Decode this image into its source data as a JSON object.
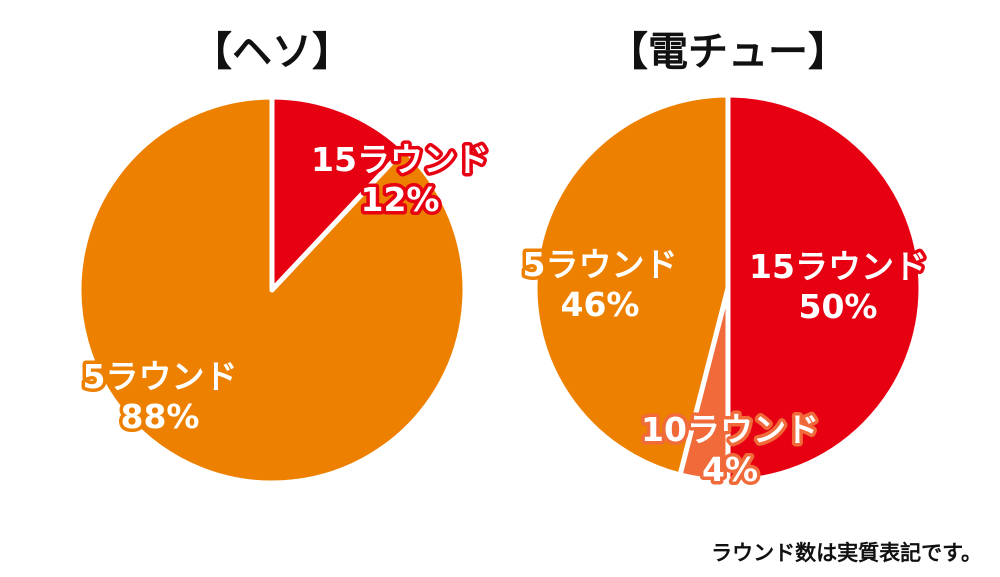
{
  "chart_data": [
    {
      "type": "pie",
      "title": "【ヘソ】",
      "slices": [
        {
          "label": "15ラウンド",
          "value": 12,
          "value_text": "12%",
          "color": "#e60012"
        },
        {
          "label": "5ラウンド",
          "value": 88,
          "value_text": "88%",
          "color": "#ee8000"
        }
      ]
    },
    {
      "type": "pie",
      "title": "【電チュー】",
      "slices": [
        {
          "label": "15ラウンド",
          "value": 50,
          "value_text": "50%",
          "color": "#e60012"
        },
        {
          "label": "10ラウンド",
          "value": 4,
          "value_text": "4%",
          "color": "#f06a3a"
        },
        {
          "label": "5ラウンド",
          "value": 46,
          "value_text": "46%",
          "color": "#ee8000"
        }
      ]
    }
  ],
  "footnote": "ラウンド数は実質表記です。"
}
